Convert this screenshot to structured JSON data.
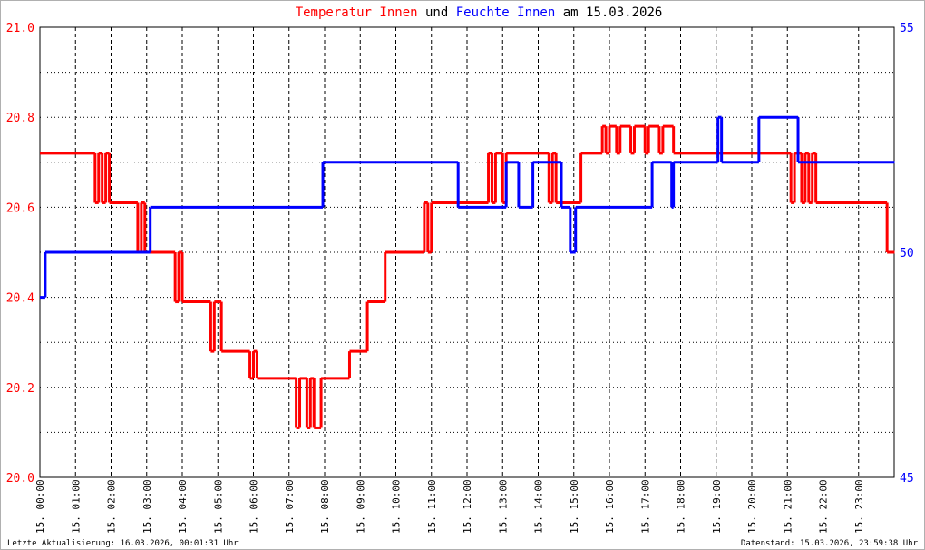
{
  "chart_data": {
    "type": "step",
    "title_joiner": "und",
    "title_suffix": "am 15.03.2026",
    "footer_left": "Letzte Aktualisierung: 16.03.2026, 00:01:31 Uhr",
    "footer_right": "Datenstand: 15.03.2026, 23:59:38 Uhr",
    "xlim": [
      0,
      24
    ],
    "xticks": [
      {
        "value": 0,
        "label": "15. 00:00"
      },
      {
        "value": 1,
        "label": "15. 01:00"
      },
      {
        "value": 2,
        "label": "15. 02:00"
      },
      {
        "value": 3,
        "label": "15. 03:00"
      },
      {
        "value": 4,
        "label": "15. 04:00"
      },
      {
        "value": 5,
        "label": "15. 05:00"
      },
      {
        "value": 6,
        "label": "15. 06:00"
      },
      {
        "value": 7,
        "label": "15. 07:00"
      },
      {
        "value": 8,
        "label": "15. 08:00"
      },
      {
        "value": 9,
        "label": "15. 09:00"
      },
      {
        "value": 10,
        "label": "15. 10:00"
      },
      {
        "value": 11,
        "label": "15. 11:00"
      },
      {
        "value": 12,
        "label": "15. 12:00"
      },
      {
        "value": 13,
        "label": "15. 13:00"
      },
      {
        "value": 14,
        "label": "15. 14:00"
      },
      {
        "value": 15,
        "label": "15. 15:00"
      },
      {
        "value": 16,
        "label": "15. 16:00"
      },
      {
        "value": 17,
        "label": "15. 17:00"
      },
      {
        "value": 18,
        "label": "15. 18:00"
      },
      {
        "value": 19,
        "label": "15. 19:00"
      },
      {
        "value": 20,
        "label": "15. 20:00"
      },
      {
        "value": 21,
        "label": "15. 21:00"
      },
      {
        "value": 22,
        "label": "15. 22:00"
      },
      {
        "value": 23,
        "label": "15. 23:00"
      }
    ],
    "ylim": [
      20,
      21
    ],
    "yticks": [
      {
        "value": 20,
        "label": "20.0"
      },
      {
        "value": 20.2,
        "label": "20.2"
      },
      {
        "value": 20.4,
        "label": "20.4"
      },
      {
        "value": 20.6,
        "label": "20.6"
      },
      {
        "value": 20.8,
        "label": "20.8"
      },
      {
        "value": 21,
        "label": "21.0"
      }
    ],
    "ygrid": [
      20.1,
      20.3,
      20.5,
      20.7,
      20.9
    ],
    "y2lim": [
      45,
      55
    ],
    "y2ticks": [
      45,
      50,
      55
    ],
    "grid": true,
    "series": [
      {
        "name": "Temperatur Innen",
        "color": "#ff0000",
        "x": [
          0,
          1.55,
          1.65,
          1.75,
          1.85,
          1.95,
          2.75,
          2.85,
          2.95,
          3.8,
          3.9,
          4.0,
          4.8,
          4.9,
          5.1,
          5.9,
          6.0,
          6.1,
          7.2,
          7.3,
          7.5,
          7.6,
          7.7,
          7.9,
          8.7,
          9.2,
          9.7,
          10.8,
          10.9,
          11.0,
          12.6,
          12.7,
          12.8,
          13.0,
          13.1,
          14.3,
          14.4,
          14.5,
          15.2,
          15.8,
          15.9,
          16.0,
          16.2,
          16.3,
          16.6,
          16.7,
          17.0,
          17.1,
          17.4,
          17.5,
          17.8,
          21.1,
          21.2,
          21.4,
          21.5,
          21.6,
          21.7,
          21.8,
          23.8,
          24
        ],
        "values": [
          20.72,
          20.61,
          20.72,
          20.61,
          20.72,
          20.61,
          20.5,
          20.61,
          20.5,
          20.39,
          20.5,
          20.39,
          20.28,
          20.39,
          20.28,
          20.22,
          20.28,
          20.22,
          20.11,
          20.22,
          20.11,
          20.22,
          20.11,
          20.22,
          20.28,
          20.39,
          20.5,
          20.61,
          20.5,
          20.61,
          20.72,
          20.61,
          20.72,
          20.61,
          20.72,
          20.61,
          20.72,
          20.61,
          20.72,
          20.78,
          20.72,
          20.78,
          20.72,
          20.78,
          20.72,
          20.78,
          20.72,
          20.78,
          20.72,
          20.78,
          20.72,
          20.61,
          20.72,
          20.61,
          20.72,
          20.61,
          20.72,
          20.61,
          20.5,
          20.5
        ]
      },
      {
        "name": "Feuchte Innen",
        "color": "#0000ff",
        "axis": "y2",
        "x": [
          0,
          0.15,
          3.1,
          7.95,
          11.75,
          13.1,
          13.45,
          13.85,
          14.65,
          14.9,
          15.05,
          17.2,
          17.75,
          17.8,
          19.05,
          19.15,
          20.2,
          21.3,
          24
        ],
        "values": [
          49,
          50,
          51,
          52,
          51,
          52,
          51,
          52,
          51,
          50,
          51,
          52,
          51,
          52,
          53,
          52,
          53,
          52,
          52
        ]
      }
    ]
  }
}
